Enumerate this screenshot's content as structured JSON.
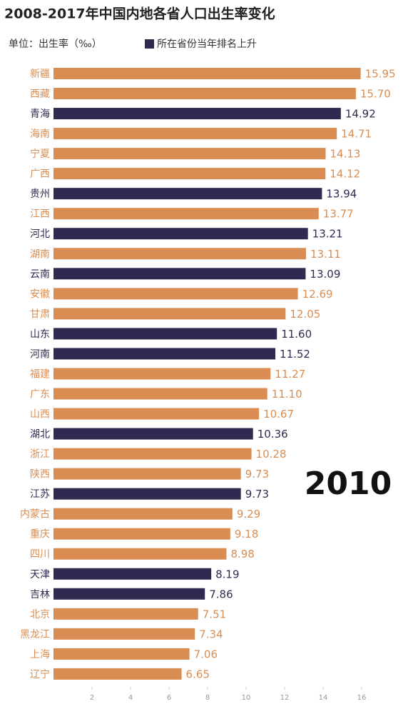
{
  "chart_data": {
    "type": "hbar",
    "title": "2008-2017年中国内地各省人口出生率变化",
    "subtitle": "单位：出生率（‰）",
    "legend": {
      "label": "所在省份当年排名上升",
      "color": "#2f2b50"
    },
    "annotation": "2010",
    "categories": [
      "新疆",
      "西藏",
      "青海",
      "海南",
      "宁夏",
      "广西",
      "贵州",
      "江西",
      "河北",
      "湖南",
      "云南",
      "安徽",
      "甘肃",
      "山东",
      "河南",
      "福建",
      "广东",
      "山西",
      "湖北",
      "浙江",
      "陕西",
      "江苏",
      "内蒙古",
      "重庆",
      "四川",
      "天津",
      "吉林",
      "北京",
      "黑龙江",
      "上海",
      "辽宁"
    ],
    "values": [
      15.95,
      15.7,
      14.92,
      14.71,
      14.13,
      14.12,
      13.94,
      13.77,
      13.21,
      13.11,
      13.09,
      12.69,
      12.05,
      11.6,
      11.52,
      11.27,
      11.1,
      10.67,
      10.36,
      10.28,
      9.73,
      9.73,
      9.29,
      9.18,
      8.98,
      8.19,
      7.86,
      7.51,
      7.34,
      7.06,
      6.65
    ],
    "value_labels": [
      "15.95",
      "15.70",
      "14.92",
      "14.71",
      "14.13",
      "14.12",
      "13.94",
      "13.77",
      "13.21",
      "13.11",
      "13.09",
      "12.69",
      "12.05",
      "11.60",
      "11.52",
      "11.27",
      "11.10",
      "10.67",
      "10.36",
      "10.28",
      "9.73",
      "9.73",
      "9.29",
      "9.18",
      "8.98",
      "8.19",
      "7.86",
      "7.51",
      "7.34",
      "7.06",
      "6.65"
    ],
    "colors": [
      "#d98d52",
      "#d98d52",
      "#2f2b50",
      "#d98d52",
      "#d98d52",
      "#d98d52",
      "#2f2b50",
      "#d98d52",
      "#2f2b50",
      "#d98d52",
      "#2f2b50",
      "#d98d52",
      "#d98d52",
      "#2f2b50",
      "#2f2b50",
      "#d98d52",
      "#d98d52",
      "#d98d52",
      "#2f2b50",
      "#d98d52",
      "#d98d52",
      "#2f2b50",
      "#d98d52",
      "#d98d52",
      "#d98d52",
      "#2f2b50",
      "#2f2b50",
      "#d98d52",
      "#d98d52",
      "#d98d52",
      "#d98d52"
    ],
    "xlim": [
      0,
      16
    ],
    "xticks": [
      2,
      4,
      6,
      8,
      10,
      12,
      14,
      16
    ]
  }
}
